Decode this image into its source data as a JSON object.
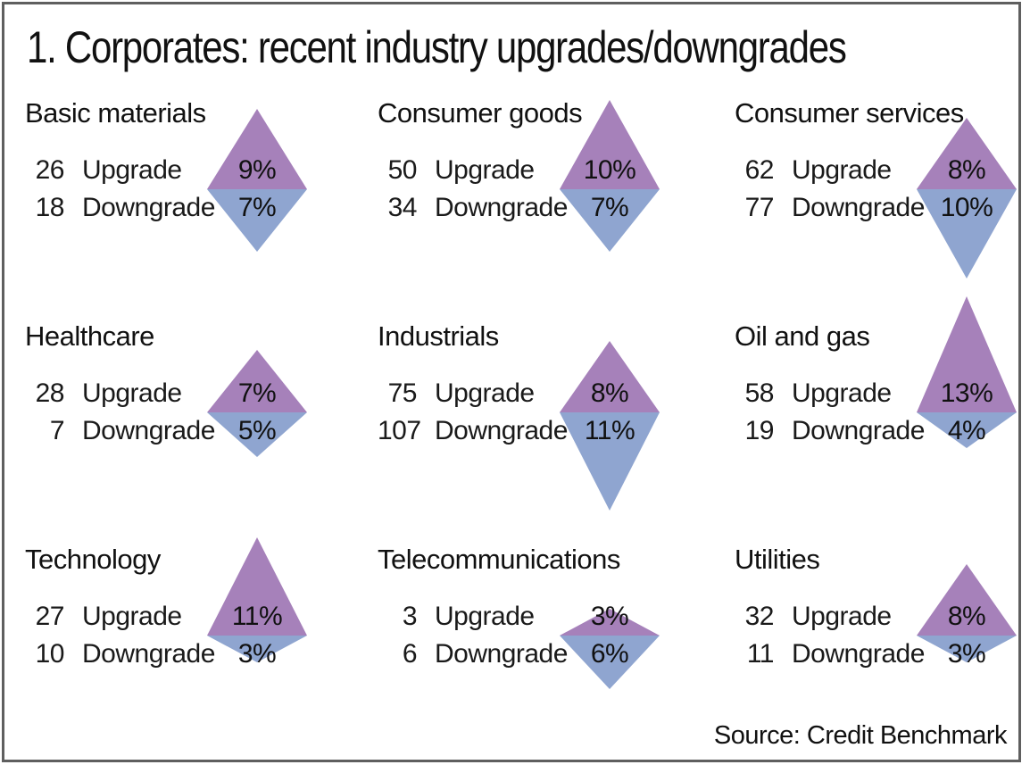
{
  "title": "1. Corporates: recent industry upgrades/downgrades",
  "source": "Source: Credit Benchmark",
  "labels": {
    "upgrade": "Upgrade",
    "downgrade": "Downgrade"
  },
  "colors": {
    "upgrade_triangle": "#a681ba",
    "downgrade_triangle": "#8fa5d0",
    "frame_border": "#5f5f5f",
    "text": "#1a1a1a"
  },
  "sectors": [
    {
      "name": "Basic materials",
      "upgrade_count": "26",
      "upgrade_pct": "9%",
      "upgrade_pct_value": 9,
      "downgrade_count": "18",
      "downgrade_pct": "7%",
      "downgrade_pct_value": 7
    },
    {
      "name": "Consumer goods",
      "upgrade_count": "50",
      "upgrade_pct": "10%",
      "upgrade_pct_value": 10,
      "downgrade_count": "34",
      "downgrade_pct": "7%",
      "downgrade_pct_value": 7
    },
    {
      "name": "Consumer services",
      "upgrade_count": "62",
      "upgrade_pct": "8%",
      "upgrade_pct_value": 8,
      "downgrade_count": "77",
      "downgrade_pct": "10%",
      "downgrade_pct_value": 10
    },
    {
      "name": "Healthcare",
      "upgrade_count": "28",
      "upgrade_pct": "7%",
      "upgrade_pct_value": 7,
      "downgrade_count": "7",
      "downgrade_pct": "5%",
      "downgrade_pct_value": 5
    },
    {
      "name": "Industrials",
      "upgrade_count": "75",
      "upgrade_pct": "8%",
      "upgrade_pct_value": 8,
      "downgrade_count": "107",
      "downgrade_pct": "11%",
      "downgrade_pct_value": 11
    },
    {
      "name": "Oil and gas",
      "upgrade_count": "58",
      "upgrade_pct": "13%",
      "upgrade_pct_value": 13,
      "downgrade_count": "19",
      "downgrade_pct": "4%",
      "downgrade_pct_value": 4
    },
    {
      "name": "Technology",
      "upgrade_count": "27",
      "upgrade_pct": "11%",
      "upgrade_pct_value": 11,
      "downgrade_count": "10",
      "downgrade_pct": "3%",
      "downgrade_pct_value": 3
    },
    {
      "name": "Telecommunications",
      "upgrade_count": "3",
      "upgrade_pct": "3%",
      "upgrade_pct_value": 3,
      "downgrade_count": "6",
      "downgrade_pct": "6%",
      "downgrade_pct_value": 6
    },
    {
      "name": "Utilities",
      "upgrade_count": "32",
      "upgrade_pct": "8%",
      "upgrade_pct_value": 8,
      "downgrade_count": "11",
      "downgrade_pct": "3%",
      "downgrade_pct_value": 3
    }
  ],
  "chart_data": {
    "type": "table",
    "title": "1. Corporates: recent industry upgrades/downgrades",
    "glyph_encoding": "per sector, a diamond of two triangles: purple upward triangle = upgrade %, blue-grey downward triangle = downgrade %, triangle height proportional to percentage (~10px per 1%), constant base width",
    "legend_position": "none",
    "grid": false,
    "categories": [
      "Basic materials",
      "Consumer goods",
      "Consumer services",
      "Healthcare",
      "Industrials",
      "Oil and gas",
      "Technology",
      "Telecommunications",
      "Utilities"
    ],
    "series": [
      {
        "name": "Upgrade count",
        "values": [
          26,
          50,
          62,
          28,
          75,
          58,
          27,
          3,
          32
        ]
      },
      {
        "name": "Upgrade %",
        "values": [
          9,
          10,
          8,
          7,
          8,
          13,
          11,
          3,
          8
        ]
      },
      {
        "name": "Downgrade count",
        "values": [
          18,
          34,
          77,
          7,
          107,
          19,
          10,
          6,
          11
        ]
      },
      {
        "name": "Downgrade %",
        "values": [
          7,
          7,
          10,
          5,
          11,
          4,
          3,
          6,
          3
        ]
      }
    ],
    "source": "Source: Credit Benchmark"
  }
}
